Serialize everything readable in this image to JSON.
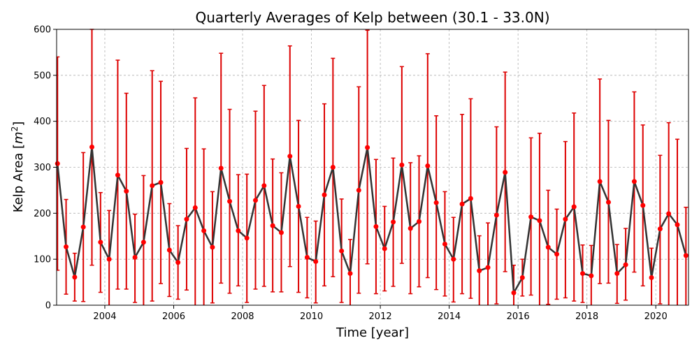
{
  "chart_data": {
    "type": "line",
    "title": "Quarterly Averages of Kelp between (30.1 - 33.0N)",
    "xlabel": "Time [year]",
    "ylabel_main": "Kelp Area [",
    "ylabel_unit": "m",
    "ylabel_sup": "2",
    "ylabel_end": "]",
    "xlim": [
      2002.6,
      2020.95
    ],
    "ylim": [
      0,
      600
    ],
    "x_ticks": [
      2004,
      2006,
      2008,
      2010,
      2012,
      2014,
      2016,
      2018,
      2020
    ],
    "y_ticks": [
      0,
      100,
      200,
      300,
      400,
      500,
      600
    ],
    "grid": true,
    "colors": {
      "line": "#333333",
      "marker": "#ff0000",
      "errorbar": "#dd0000",
      "grid": "#b0b0b0"
    },
    "x": [
      2002.625,
      2002.875,
      2003.125,
      2003.375,
      2003.625,
      2003.875,
      2004.125,
      2004.375,
      2004.625,
      2004.875,
      2005.125,
      2005.375,
      2005.625,
      2005.875,
      2006.125,
      2006.375,
      2006.625,
      2006.875,
      2007.125,
      2007.375,
      2007.625,
      2007.875,
      2008.125,
      2008.375,
      2008.625,
      2008.875,
      2009.125,
      2009.375,
      2009.625,
      2009.875,
      2010.125,
      2010.375,
      2010.625,
      2010.875,
      2011.125,
      2011.375,
      2011.625,
      2011.875,
      2012.125,
      2012.375,
      2012.625,
      2012.875,
      2013.125,
      2013.375,
      2013.625,
      2013.875,
      2014.125,
      2014.375,
      2014.625,
      2014.875,
      2015.125,
      2015.375,
      2015.625,
      2015.875,
      2016.125,
      2016.375,
      2016.625,
      2016.875,
      2017.125,
      2017.375,
      2017.625,
      2017.875,
      2018.125,
      2018.375,
      2018.625,
      2018.875,
      2019.125,
      2019.375,
      2019.625,
      2019.875,
      2020.125,
      2020.375,
      2020.625,
      2020.875
    ],
    "y": [
      308,
      127,
      61,
      170,
      344,
      137,
      100,
      283,
      248,
      104,
      137,
      260,
      267,
      120,
      93,
      187,
      212,
      162,
      126,
      298,
      226,
      162,
      146,
      228,
      260,
      173,
      158,
      324,
      215,
      104,
      95,
      240,
      300,
      118,
      69,
      250,
      343,
      171,
      123,
      181,
      305,
      167,
      182,
      303,
      223,
      133,
      100,
      220,
      232,
      75,
      82,
      196,
      289,
      27,
      60,
      192,
      184,
      126,
      111,
      187,
      214,
      69,
      64,
      269,
      224,
      69,
      88,
      269,
      217,
      60,
      166,
      199,
      175,
      108
    ],
    "y_upper": [
      540,
      230,
      113,
      332,
      600,
      245,
      206,
      533,
      461,
      198,
      282,
      510,
      487,
      221,
      173,
      341,
      451,
      340,
      247,
      548,
      426,
      284,
      285,
      422,
      478,
      318,
      288,
      564,
      402,
      191,
      183,
      438,
      537,
      231,
      143,
      475,
      598,
      317,
      215,
      320,
      519,
      310,
      325,
      547,
      412,
      247,
      191,
      415,
      449,
      151,
      179,
      388,
      507,
      87,
      100,
      364,
      374,
      250,
      209,
      356,
      418,
      131,
      130,
      492,
      402,
      132,
      167,
      464,
      392,
      124,
      326,
      397,
      361,
      213
    ],
    "y_lower": [
      76,
      24,
      9,
      8,
      87,
      28,
      0,
      35,
      35,
      6,
      0,
      9,
      47,
      19,
      13,
      33,
      0,
      0,
      5,
      48,
      26,
      42,
      6,
      35,
      41,
      29,
      29,
      84,
      28,
      16,
      5,
      42,
      62,
      6,
      0,
      26,
      90,
      25,
      31,
      41,
      91,
      25,
      40,
      60,
      34,
      20,
      7,
      25,
      15,
      0,
      0,
      3,
      73,
      0,
      20,
      22,
      0,
      2,
      13,
      16,
      9,
      6,
      0,
      47,
      48,
      4,
      11,
      72,
      42,
      0,
      3,
      0,
      0,
      0
    ]
  }
}
